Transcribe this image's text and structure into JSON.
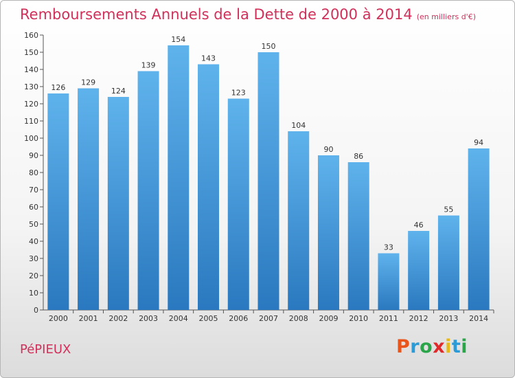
{
  "title": "Remboursements Annuels de la Dette de 2000 à 2014",
  "subtitle": "(en milliers d'€)",
  "commune": "PéPIEUX",
  "logo": {
    "letters": [
      "P",
      "r",
      "o",
      "x",
      "i",
      "t",
      "i"
    ],
    "colors": [
      "#e8541a",
      "#2a9bd6",
      "#2aa54a",
      "#e02a2a",
      "#e7b81c",
      "#2a9bd6",
      "#2aa54a"
    ]
  },
  "colors": {
    "bar": "#3a8fd4",
    "bar_light": "#5fb3ec",
    "title": "#d0305a"
  },
  "chart_data": {
    "type": "bar",
    "title": "Remboursements Annuels de la Dette de 2000 à 2014",
    "categories": [
      "2000",
      "2001",
      "2002",
      "2003",
      "2004",
      "2005",
      "2006",
      "2007",
      "2008",
      "2009",
      "2010",
      "2011",
      "2012",
      "2013",
      "2014"
    ],
    "values": [
      126,
      129,
      124,
      139,
      154,
      143,
      123,
      150,
      104,
      90,
      86,
      33,
      46,
      55,
      94
    ],
    "ylim": [
      0,
      160
    ],
    "yticks": [
      0,
      10,
      20,
      30,
      40,
      50,
      60,
      70,
      80,
      90,
      100,
      110,
      120,
      130,
      140,
      150,
      160
    ],
    "grid": false,
    "legend": "none"
  }
}
